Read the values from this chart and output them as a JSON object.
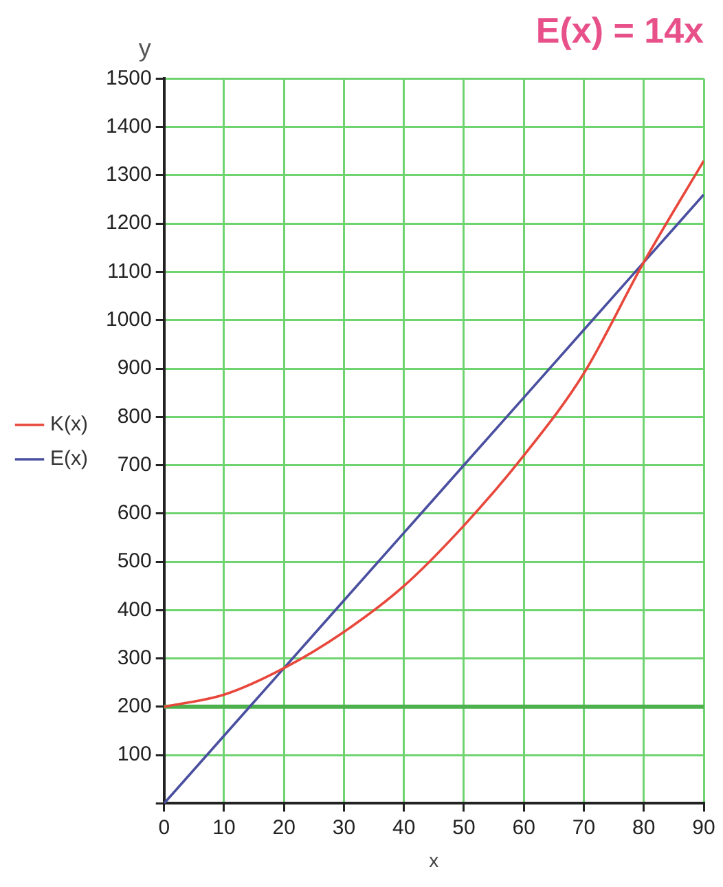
{
  "chart_data": {
    "type": "line",
    "title": "E(x) = 14x",
    "xlabel": "x",
    "ylabel": "y",
    "x": [
      0,
      10,
      20,
      30,
      40,
      50,
      60,
      70,
      80,
      90
    ],
    "series": [
      {
        "name": "K(x)",
        "color": "#e8483c",
        "values": [
          200,
          225,
          280,
          355,
          450,
          575,
          720,
          890,
          1120,
          1330
        ]
      },
      {
        "name": "E(x)",
        "color": "#4a4fa0",
        "values": [
          0,
          140,
          280,
          420,
          560,
          700,
          840,
          980,
          1120,
          1260
        ]
      }
    ],
    "xlim": [
      0,
      90
    ],
    "xticks": [
      0,
      10,
      20,
      30,
      40,
      50,
      60,
      70,
      80,
      90
    ],
    "ylim": [
      0,
      1500
    ],
    "yticks": [
      {
        "value": 0,
        "label": null
      },
      100,
      200,
      300,
      400,
      500,
      600,
      700,
      800,
      900,
      1000,
      1100,
      1200,
      1300,
      1400,
      1500
    ],
    "ref_lines": [
      {
        "axis": "y",
        "value": 200,
        "color": "#4cb04c"
      }
    ],
    "grid": true,
    "legend": "left",
    "marker": "none",
    "line_style": "solid"
  }
}
